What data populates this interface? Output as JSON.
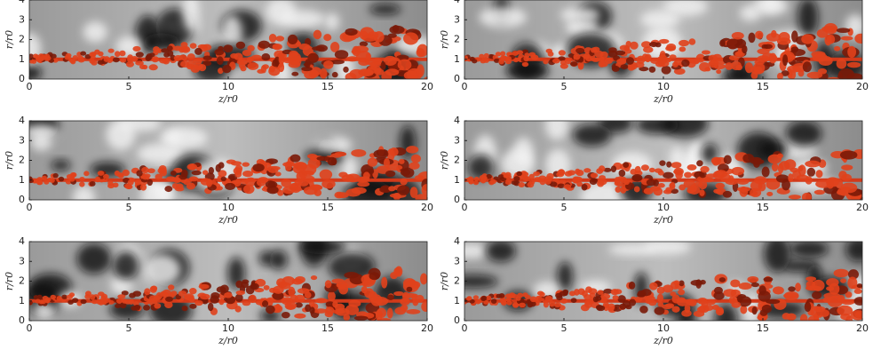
{
  "chart_data": [
    {
      "type": "image",
      "xlabel": "z/r0",
      "ylabel": "r/r0",
      "xlim": [
        0,
        20
      ],
      "ylim": [
        0,
        4
      ],
      "xticks": [
        0,
        5,
        10,
        15,
        20
      ],
      "yticks": [
        0,
        1,
        2,
        3,
        4
      ]
    },
    {
      "type": "image",
      "xlabel": "z/r0",
      "ylabel": "r/r0",
      "xlim": [
        0,
        20
      ],
      "ylim": [
        0,
        4
      ],
      "xticks": [
        0,
        5,
        10,
        15,
        20
      ],
      "yticks": [
        0,
        1,
        2,
        3,
        4
      ]
    },
    {
      "type": "image",
      "xlabel": "z/r0",
      "ylabel": "r/r0",
      "xlim": [
        0,
        20
      ],
      "ylim": [
        0,
        4
      ],
      "xticks": [
        0,
        5,
        10,
        15,
        20
      ],
      "yticks": [
        0,
        1,
        2,
        3,
        4
      ]
    },
    {
      "type": "image",
      "xlabel": "z/r0",
      "ylabel": "r/r0",
      "xlim": [
        0,
        20
      ],
      "ylim": [
        0,
        4
      ],
      "xticks": [
        0,
        5,
        10,
        15,
        20
      ],
      "yticks": [
        0,
        1,
        2,
        3,
        4
      ]
    },
    {
      "type": "image",
      "xlabel": "z/r0",
      "ylabel": "r/r0",
      "xlim": [
        0,
        20
      ],
      "ylim": [
        0,
        4
      ],
      "xticks": [
        0,
        5,
        10,
        15,
        20
      ],
      "yticks": [
        0,
        1,
        2,
        3,
        4
      ]
    },
    {
      "type": "image",
      "xlabel": "z/r0",
      "ylabel": "r/r0",
      "xlim": [
        0,
        20
      ],
      "ylim": [
        0,
        4
      ],
      "xticks": [
        0,
        5,
        10,
        15,
        20
      ],
      "yticks": [
        0,
        1,
        2,
        3,
        4
      ]
    }
  ]
}
